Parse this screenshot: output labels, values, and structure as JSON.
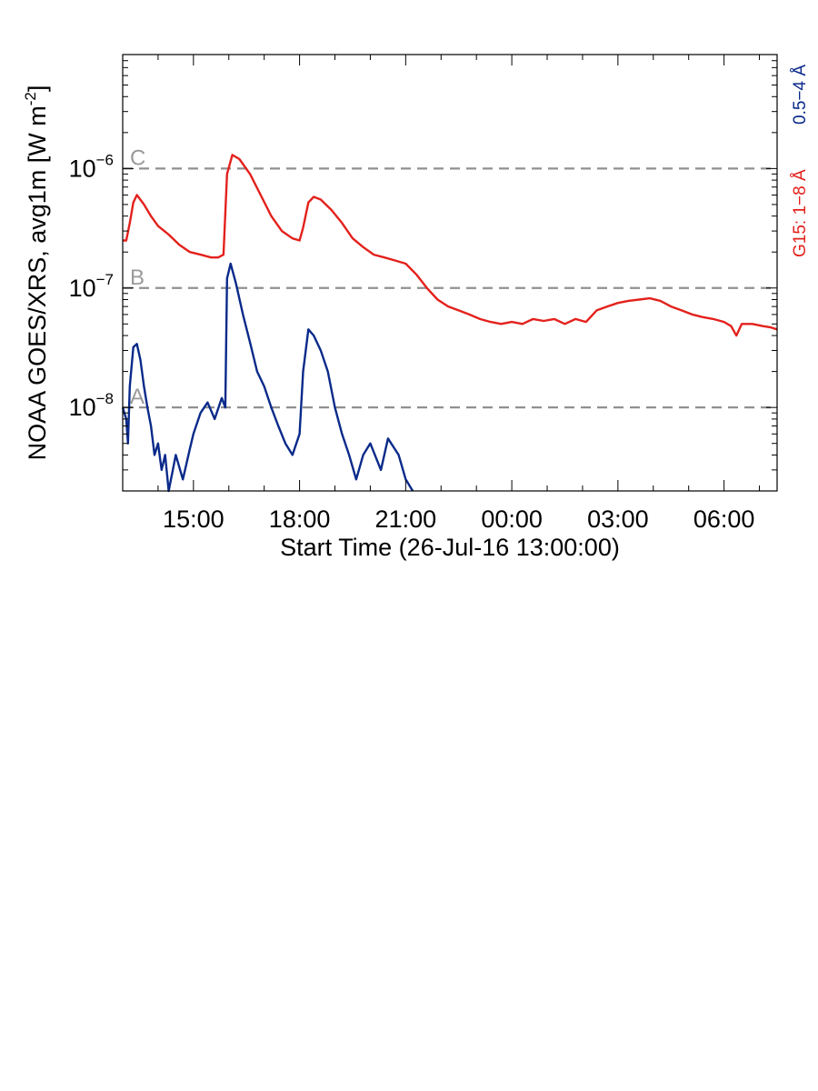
{
  "chart_data": {
    "type": "line",
    "title": "",
    "xlabel": "Start Time (26-Jul-16 13:00:00)",
    "ylabel": "NOAA GOES/XRS, avg1m [W m",
    "ylabel_sup": "-2",
    "ylabel_close": "]",
    "y_scale": "log",
    "y_range": [
      2e-09,
      9e-06
    ],
    "x_range_hours": [
      13.0,
      31.5
    ],
    "x_ticks": [
      {
        "h": 15,
        "label": "15:00"
      },
      {
        "h": 18,
        "label": "18:00"
      },
      {
        "h": 21,
        "label": "21:00"
      },
      {
        "h": 24,
        "label": "00:00"
      },
      {
        "h": 27,
        "label": "03:00"
      },
      {
        "h": 30,
        "label": "06:00"
      }
    ],
    "y_ticks": [
      {
        "value": 1e-06,
        "base": "10",
        "exp": "−6"
      },
      {
        "value": 1e-07,
        "base": "10",
        "exp": "−7"
      },
      {
        "value": 1e-08,
        "base": "10",
        "exp": "−8"
      }
    ],
    "flare_classes": [
      {
        "label": "C",
        "value": 1e-06
      },
      {
        "label": "B",
        "value": 1e-07
      },
      {
        "label": "A",
        "value": 1e-08
      }
    ],
    "grid": false,
    "legend_placement": "right (rotated labels)",
    "series": [
      {
        "name": "G15: 1−8 Å",
        "color": "#e3211c",
        "points": [
          [
            13.0,
            2.5e-07
          ],
          [
            13.1,
            2.5e-07
          ],
          [
            13.2,
            3.5e-07
          ],
          [
            13.3,
            5.2e-07
          ],
          [
            13.4,
            6e-07
          ],
          [
            13.6,
            5e-07
          ],
          [
            13.8,
            4e-07
          ],
          [
            14.0,
            3.3e-07
          ],
          [
            14.3,
            2.8e-07
          ],
          [
            14.6,
            2.3e-07
          ],
          [
            14.9,
            2e-07
          ],
          [
            15.2,
            1.9e-07
          ],
          [
            15.5,
            1.8e-07
          ],
          [
            15.7,
            1.8e-07
          ],
          [
            15.85,
            1.9e-07
          ],
          [
            15.95,
            9e-07
          ],
          [
            16.1,
            1.3e-06
          ],
          [
            16.3,
            1.2e-06
          ],
          [
            16.6,
            9e-07
          ],
          [
            16.9,
            6e-07
          ],
          [
            17.2,
            4e-07
          ],
          [
            17.5,
            3e-07
          ],
          [
            17.8,
            2.6e-07
          ],
          [
            18.0,
            2.5e-07
          ],
          [
            18.1,
            3.2e-07
          ],
          [
            18.25,
            5.2e-07
          ],
          [
            18.4,
            5.8e-07
          ],
          [
            18.6,
            5.5e-07
          ],
          [
            18.9,
            4.5e-07
          ],
          [
            19.2,
            3.5e-07
          ],
          [
            19.5,
            2.6e-07
          ],
          [
            19.8,
            2.2e-07
          ],
          [
            20.1,
            1.9e-07
          ],
          [
            20.4,
            1.8e-07
          ],
          [
            20.7,
            1.7e-07
          ],
          [
            21.0,
            1.6e-07
          ],
          [
            21.3,
            1.3e-07
          ],
          [
            21.6,
            1e-07
          ],
          [
            21.9,
            8e-08
          ],
          [
            22.2,
            7e-08
          ],
          [
            22.5,
            6.5e-08
          ],
          [
            22.8,
            6e-08
          ],
          [
            23.1,
            5.5e-08
          ],
          [
            23.4,
            5.2e-08
          ],
          [
            23.7,
            5e-08
          ],
          [
            24.0,
            5.2e-08
          ],
          [
            24.3,
            5e-08
          ],
          [
            24.6,
            5.5e-08
          ],
          [
            24.9,
            5.3e-08
          ],
          [
            25.2,
            5.5e-08
          ],
          [
            25.5,
            5e-08
          ],
          [
            25.8,
            5.5e-08
          ],
          [
            26.1,
            5.2e-08
          ],
          [
            26.4,
            6.5e-08
          ],
          [
            26.7,
            7e-08
          ],
          [
            27.0,
            7.5e-08
          ],
          [
            27.3,
            7.8e-08
          ],
          [
            27.6,
            8e-08
          ],
          [
            27.9,
            8.2e-08
          ],
          [
            28.2,
            7.8e-08
          ],
          [
            28.5,
            7e-08
          ],
          [
            28.8,
            6.5e-08
          ],
          [
            29.1,
            6e-08
          ],
          [
            29.4,
            5.7e-08
          ],
          [
            29.7,
            5.5e-08
          ],
          [
            30.0,
            5.2e-08
          ],
          [
            30.2,
            4.8e-08
          ],
          [
            30.35,
            4e-08
          ],
          [
            30.5,
            5e-08
          ],
          [
            30.8,
            5e-08
          ],
          [
            31.1,
            4.8e-08
          ],
          [
            31.3,
            4.7e-08
          ],
          [
            31.5,
            4.5e-08
          ]
        ]
      },
      {
        "name": "0.5−4 Å",
        "color": "#0a2a8a",
        "points": [
          [
            13.0,
            1e-08
          ],
          [
            13.1,
            8e-09
          ],
          [
            13.15,
            5e-09
          ],
          [
            13.2,
            1.5e-08
          ],
          [
            13.3,
            3.2e-08
          ],
          [
            13.4,
            3.4e-08
          ],
          [
            13.5,
            2.5e-08
          ],
          [
            13.6,
            1.5e-08
          ],
          [
            13.7,
            1e-08
          ],
          [
            13.8,
            7e-09
          ],
          [
            13.9,
            4e-09
          ],
          [
            14.0,
            5e-09
          ],
          [
            14.1,
            3e-09
          ],
          [
            14.2,
            4e-09
          ],
          [
            14.3,
            2e-09
          ],
          [
            14.5,
            4e-09
          ],
          [
            14.7,
            2.5e-09
          ],
          [
            14.9,
            4.5e-09
          ],
          [
            15.0,
            6e-09
          ],
          [
            15.2,
            9e-09
          ],
          [
            15.4,
            1.1e-08
          ],
          [
            15.6,
            8e-09
          ],
          [
            15.8,
            1.2e-08
          ],
          [
            15.9,
            1e-08
          ],
          [
            15.95,
            1.2e-07
          ],
          [
            16.05,
            1.6e-07
          ],
          [
            16.2,
            1.1e-07
          ],
          [
            16.4,
            6e-08
          ],
          [
            16.6,
            3.5e-08
          ],
          [
            16.8,
            2e-08
          ],
          [
            17.0,
            1.5e-08
          ],
          [
            17.2,
            1e-08
          ],
          [
            17.4,
            7e-09
          ],
          [
            17.6,
            5e-09
          ],
          [
            17.8,
            4e-09
          ],
          [
            18.0,
            6e-09
          ],
          [
            18.1,
            2e-08
          ],
          [
            18.25,
            4.5e-08
          ],
          [
            18.4,
            4e-08
          ],
          [
            18.6,
            3e-08
          ],
          [
            18.8,
            2e-08
          ],
          [
            19.0,
            1e-08
          ],
          [
            19.2,
            6e-09
          ],
          [
            19.4,
            4e-09
          ],
          [
            19.6,
            2.5e-09
          ],
          [
            19.8,
            4e-09
          ],
          [
            20.0,
            5e-09
          ],
          [
            20.3,
            3e-09
          ],
          [
            20.5,
            5.5e-09
          ],
          [
            20.8,
            4e-09
          ],
          [
            21.0,
            2.5e-09
          ],
          [
            21.2,
            2e-09
          ]
        ]
      }
    ]
  }
}
